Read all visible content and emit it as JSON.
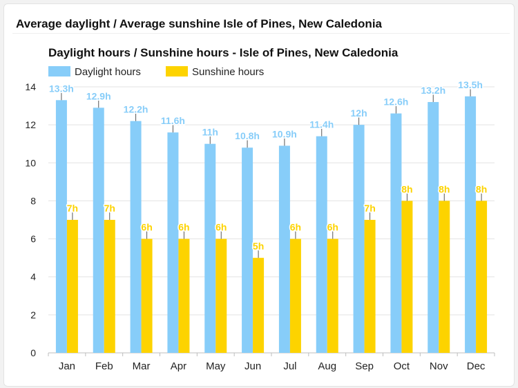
{
  "page": {
    "title": "Average daylight / Average sunshine Isle of Pines, New Caledonia"
  },
  "chart_data": {
    "type": "bar",
    "title": "Daylight hours / Sunshine hours - Isle of Pines, New Caledonia",
    "categories": [
      "Jan",
      "Feb",
      "Mar",
      "Apr",
      "May",
      "Jun",
      "Jul",
      "Aug",
      "Sep",
      "Oct",
      "Nov",
      "Dec"
    ],
    "series": [
      {
        "name": "Daylight hours",
        "color": "#87cdf9",
        "values": [
          13.3,
          12.9,
          12.2,
          11.6,
          11,
          10.8,
          10.9,
          11.4,
          12,
          12.6,
          13.2,
          13.5
        ],
        "labels": [
          "13.3h",
          "12.9h",
          "12.2h",
          "11.6h",
          "11h",
          "10.8h",
          "10.9h",
          "11.4h",
          "12h",
          "12.6h",
          "13.2h",
          "13.5h"
        ]
      },
      {
        "name": "Sunshine hours",
        "color": "#fdd300",
        "values": [
          7,
          7,
          6,
          6,
          6,
          5,
          6,
          6,
          7,
          8,
          8,
          8
        ],
        "labels": [
          "7h",
          "7h",
          "6h",
          "6h",
          "6h",
          "5h",
          "6h",
          "6h",
          "7h",
          "8h",
          "8h",
          "8h"
        ]
      }
    ],
    "yticks": [
      "0",
      "2",
      "4",
      "6",
      "8",
      "10",
      "12",
      "14"
    ],
    "ylim": [
      0,
      14
    ],
    "grid": true,
    "legend": "top-left"
  }
}
